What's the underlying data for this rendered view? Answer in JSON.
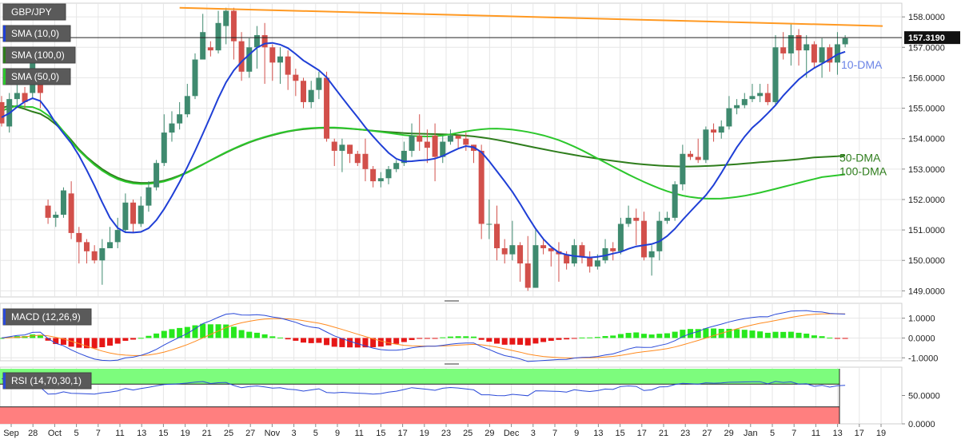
{
  "colors": {
    "bg": "#ffffff",
    "grid": "#e6e6e6",
    "up": "#3f8a6f",
    "down": "#d2504b",
    "sma10": "#1f3fd6",
    "sma50": "#2cc72c",
    "sma100": "#2e7d1c",
    "trend": "#ff9922",
    "macd_pos": "#27e81d",
    "macd_neg": "#e61717",
    "macd_line": "#2a49d8",
    "signal_line": "#ff8a1e",
    "rsi_line": "#2a49d8",
    "rsi_over": "#7dfc7d",
    "rsi_under": "#ff7f7f",
    "label_box": "#5a5a5a"
  },
  "chart_data": {
    "type": "candlestick",
    "symbol": "GBP/JPY",
    "last_price": "157.3190",
    "indicators": [
      "SMA (10,0)",
      "SMA (100,0)",
      "SMA (50,0)"
    ],
    "annotations": [
      "10-DMA",
      "50-DMA",
      "100-DMA"
    ],
    "price_range": [
      148.8,
      158.45
    ],
    "price_ticks": [
      "158.0000",
      "157.0000",
      "156.0000",
      "155.0000",
      "154.0000",
      "153.0000",
      "152.0000",
      "151.0000",
      "150.0000",
      "149.0000"
    ],
    "x_ticks": [
      "Sep",
      "28",
      "Oct",
      "5",
      "7",
      "11",
      "13",
      "15",
      "19",
      "21",
      "25",
      "27",
      "Nov",
      "3",
      "5",
      "9",
      "11",
      "15",
      "17",
      "19",
      "23",
      "25",
      "29",
      "Dec",
      "3",
      "7",
      "9",
      "13",
      "15",
      "17",
      "21",
      "23",
      "27",
      "29",
      "Jan",
      "5",
      "7",
      "11",
      "13",
      "17",
      "19"
    ],
    "candles": [
      [
        155.2,
        154.5,
        155.4,
        154.4
      ],
      [
        154.4,
        155.3,
        155.5,
        154.2
      ],
      [
        155.3,
        155.5,
        155.8,
        155.1
      ],
      [
        155.5,
        155.2,
        155.7,
        155.0
      ],
      [
        155.5,
        156.6,
        156.9,
        155.3
      ],
      [
        156.1,
        155.5,
        156.2,
        155.0
      ],
      [
        151.8,
        151.4,
        152.0,
        151.2
      ],
      [
        151.4,
        151.5,
        151.6,
        151.1
      ],
      [
        151.5,
        152.3,
        152.4,
        151.4
      ],
      [
        152.2,
        150.9,
        152.6,
        150.7
      ],
      [
        150.9,
        150.6,
        151.1,
        149.9
      ],
      [
        150.6,
        150.3,
        150.7,
        149.9
      ],
      [
        150.3,
        150.0,
        150.5,
        149.9
      ],
      [
        150.0,
        150.4,
        150.7,
        149.2
      ],
      [
        150.4,
        150.6,
        151.1,
        150.4
      ],
      [
        150.6,
        151.0,
        151.4,
        150.4
      ],
      [
        151.0,
        151.9,
        152.2,
        150.9
      ],
      [
        151.9,
        151.2,
        152.0,
        150.9
      ],
      [
        151.2,
        151.8,
        152.1,
        151.1
      ],
      [
        151.8,
        152.4,
        152.6,
        151.6
      ],
      [
        152.4,
        153.2,
        153.3,
        152.3
      ],
      [
        153.2,
        154.2,
        154.8,
        153.1
      ],
      [
        154.2,
        154.5,
        154.9,
        153.9
      ],
      [
        154.5,
        154.8,
        155.2,
        154.3
      ],
      [
        154.8,
        155.4,
        155.8,
        154.7
      ],
      [
        155.4,
        156.6,
        156.8,
        155.3
      ],
      [
        156.6,
        157.5,
        158.1,
        156.7
      ],
      [
        157.0,
        156.9,
        157.2,
        156.7
      ],
      [
        156.9,
        157.8,
        158.2,
        156.8
      ],
      [
        157.7,
        158.2,
        158.3,
        157.1
      ],
      [
        158.2,
        157.2,
        158.3,
        156.6
      ],
      [
        157.2,
        156.2,
        157.5,
        155.9
      ],
      [
        156.2,
        157.0,
        157.3,
        156.0
      ],
      [
        157.0,
        157.4,
        157.7,
        156.3
      ],
      [
        157.4,
        157.0,
        157.8,
        155.8
      ],
      [
        157.0,
        156.5,
        157.1,
        155.9
      ],
      [
        156.5,
        156.7,
        157.0,
        155.8
      ],
      [
        156.7,
        156.1,
        156.9,
        155.6
      ],
      [
        156.1,
        155.9,
        156.3,
        155.4
      ],
      [
        155.9,
        155.2,
        156.0,
        155.0
      ],
      [
        155.2,
        155.6,
        155.9,
        155.0
      ],
      [
        155.6,
        156.0,
        156.2,
        155.3
      ],
      [
        156.0,
        154.0,
        156.2,
        153.9
      ],
      [
        153.9,
        153.6,
        154.0,
        153.1
      ],
      [
        153.6,
        153.8,
        154.0,
        152.9
      ],
      [
        153.8,
        153.5,
        153.8,
        153.2
      ],
      [
        153.5,
        153.2,
        153.6,
        153.1
      ],
      [
        153.5,
        153.0,
        154.0,
        152.6
      ],
      [
        153.0,
        152.6,
        153.1,
        152.4
      ],
      [
        152.6,
        152.7,
        152.9,
        152.4
      ],
      [
        152.7,
        153.0,
        153.1,
        152.5
      ],
      [
        153.0,
        153.2,
        153.3,
        152.9
      ],
      [
        153.2,
        153.6,
        153.9,
        153.1
      ],
      [
        153.6,
        154.1,
        154.5,
        153.4
      ],
      [
        154.1,
        153.9,
        154.8,
        153.6
      ],
      [
        153.9,
        153.7,
        154.3,
        153.2
      ],
      [
        154.1,
        153.4,
        154.5,
        152.6
      ],
      [
        153.4,
        153.9,
        154.1,
        153.2
      ],
      [
        153.9,
        154.1,
        154.3,
        153.8
      ],
      [
        154.1,
        154.0,
        154.1,
        153.7
      ],
      [
        154.0,
        153.8,
        154.2,
        153.6
      ],
      [
        153.8,
        153.6,
        153.8,
        153.2
      ],
      [
        153.6,
        151.2,
        153.8,
        150.7
      ],
      [
        151.2,
        151.2,
        152.0,
        150.7
      ],
      [
        151.2,
        150.4,
        151.8,
        150.0
      ],
      [
        150.4,
        150.2,
        150.7,
        149.9
      ],
      [
        150.2,
        150.5,
        151.3,
        150.0
      ],
      [
        150.5,
        149.9,
        150.6,
        149.3
      ],
      [
        149.9,
        149.1,
        150.8,
        149.0
      ],
      [
        149.1,
        150.5,
        151.0,
        149.1
      ],
      [
        150.5,
        150.4,
        150.7,
        150.2
      ],
      [
        150.4,
        150.3,
        150.4,
        149.8
      ],
      [
        150.3,
        150.2,
        150.6,
        149.3
      ],
      [
        150.2,
        149.9,
        150.3,
        149.7
      ],
      [
        149.9,
        150.5,
        150.7,
        149.8
      ],
      [
        150.5,
        150.1,
        150.6,
        149.9
      ],
      [
        150.1,
        149.8,
        150.3,
        149.6
      ],
      [
        149.8,
        150.0,
        150.2,
        149.7
      ],
      [
        150.0,
        150.4,
        150.7,
        149.9
      ],
      [
        150.4,
        150.3,
        150.6,
        150.0
      ],
      [
        150.3,
        151.2,
        151.4,
        150.2
      ],
      [
        151.2,
        151.4,
        151.8,
        151.1
      ],
      [
        151.4,
        151.3,
        151.7,
        150.5
      ],
      [
        151.3,
        150.1,
        151.6,
        150.0
      ],
      [
        150.1,
        150.3,
        150.5,
        149.5
      ],
      [
        150.3,
        151.3,
        151.6,
        150.0
      ],
      [
        151.3,
        151.4,
        151.6,
        151.2
      ],
      [
        151.4,
        152.5,
        152.6,
        151.3
      ],
      [
        152.5,
        153.5,
        153.8,
        152.3
      ],
      [
        153.5,
        153.4,
        153.6,
        153.3
      ],
      [
        153.4,
        153.3,
        154.0,
        153.2
      ],
      [
        153.3,
        154.3,
        154.4,
        153.2
      ],
      [
        154.3,
        154.2,
        154.5,
        153.9
      ],
      [
        154.2,
        154.4,
        154.6,
        154.0
      ],
      [
        154.4,
        155.0,
        155.4,
        154.3
      ],
      [
        155.0,
        155.1,
        155.3,
        154.8
      ],
      [
        155.1,
        155.3,
        155.5,
        155.0
      ],
      [
        155.3,
        155.4,
        155.8,
        155.2
      ],
      [
        155.4,
        155.5,
        155.8,
        155.2
      ],
      [
        155.5,
        155.2,
        155.8,
        155.1
      ],
      [
        155.2,
        157.0,
        157.4,
        155.1
      ],
      [
        157.0,
        156.8,
        157.5,
        156.6
      ],
      [
        156.8,
        157.4,
        157.8,
        156.4
      ],
      [
        157.4,
        156.9,
        157.6,
        156.4
      ],
      [
        156.9,
        157.1,
        157.4,
        156.0
      ],
      [
        157.1,
        156.5,
        157.2,
        156.3
      ],
      [
        156.5,
        157.0,
        157.3,
        156.0
      ],
      [
        157.0,
        156.5,
        157.1,
        156.2
      ],
      [
        156.5,
        157.1,
        157.5,
        156.1
      ],
      [
        157.1,
        157.3,
        157.4,
        157.0
      ]
    ],
    "macd_range": [
      -1.15,
      1.75
    ],
    "macd_ticks": [
      "1.0000",
      "0.0000",
      "-1.0000"
    ],
    "rsi_ticks": [
      "50.0000",
      "0.0000"
    ],
    "panels": {
      "macd_label": "MACD (12,26,9)",
      "rsi_label": "RSI (14,70,30,1)"
    }
  }
}
